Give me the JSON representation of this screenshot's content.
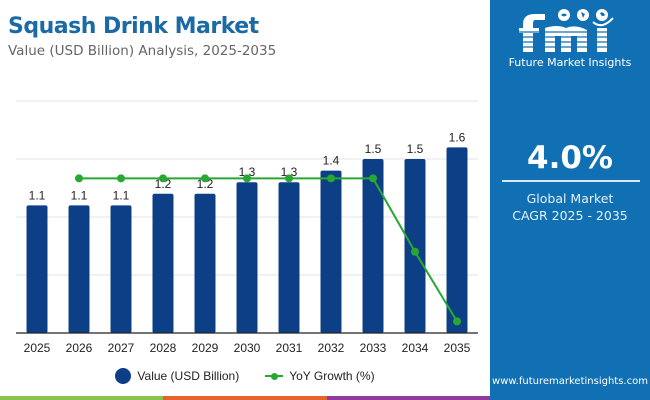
{
  "header": {
    "title": "Squash Drink Market",
    "subtitle": "Value (USD Billion) Analysis, 2025-2035"
  },
  "side_panel": {
    "logo_text": "fmi",
    "logo_subtitle": "Future Market Insights",
    "cagr_value": "4.0%",
    "cagr_label_line1": "Global Market",
    "cagr_label_line2": "CAGR 2025 - 2035",
    "website": "www.futuremarketinsights.com"
  },
  "legend": {
    "bar_label": "Value (USD Billion)",
    "line_label": "YoY Growth (%)"
  },
  "colors": {
    "title": "#1b6aa5",
    "bar": "#0d3f86",
    "line": "#28a833",
    "panel": "#1170b3",
    "bottom_bar": [
      "#8bc34a",
      "#e8622c",
      "#8e3a9e",
      "#1170b3"
    ]
  },
  "chart_data": {
    "type": "bar",
    "title": "Squash Drink Market",
    "subtitle": "Value (USD Billion) Analysis, 2025-2035",
    "xlabel": "",
    "ylabel": "",
    "categories": [
      "2025",
      "2026",
      "2027",
      "2028",
      "2029",
      "2030",
      "2031",
      "2032",
      "2033",
      "2034",
      "2035"
    ],
    "ylim": [
      0,
      2.0
    ],
    "grid": true,
    "legend_position": "bottom",
    "series": [
      {
        "name": "Value (USD Billion)",
        "type": "bar",
        "values": [
          1.1,
          1.1,
          1.1,
          1.2,
          1.2,
          1.3,
          1.3,
          1.4,
          1.5,
          1.5,
          1.6
        ],
        "labels": [
          "1.1",
          "1.1",
          "1.1",
          "1.2",
          "1.2",
          "1.3",
          "1.3",
          "1.4",
          "1.5",
          "1.5",
          "1.6"
        ]
      },
      {
        "name": "YoY Growth (%)",
        "type": "line",
        "axis": "secondary-hidden",
        "ylim": [
          0,
          6.0
        ],
        "values": [
          null,
          4.0,
          4.0,
          4.0,
          4.0,
          4.0,
          4.0,
          4.0,
          4.0,
          2.1,
          0.3
        ]
      }
    ]
  }
}
